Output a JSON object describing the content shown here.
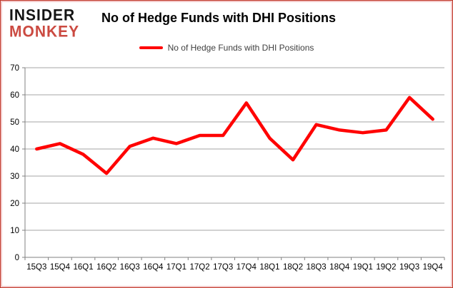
{
  "header": {
    "logo_line1": "INSIDER",
    "logo_line2": "MONKEY",
    "title": "No of Hedge Funds with DHI Positions"
  },
  "legend": {
    "label": "No of Hedge Funds with DHI Positions",
    "swatch_color": "#ff0000"
  },
  "chart_data": {
    "type": "line",
    "title": "No of Hedge Funds with DHI Positions",
    "categories": [
      "15Q3",
      "15Q4",
      "16Q1",
      "16Q2",
      "16Q3",
      "16Q4",
      "17Q1",
      "17Q2",
      "17Q3",
      "17Q4",
      "18Q1",
      "18Q2",
      "18Q3",
      "18Q4",
      "19Q1",
      "19Q2",
      "19Q3",
      "19Q4"
    ],
    "series": [
      {
        "name": "No of Hedge Funds with DHI Positions",
        "values": [
          40,
          42,
          38,
          31,
          41,
          44,
          42,
          45,
          45,
          57,
          44,
          36,
          49,
          47,
          46,
          47,
          59,
          51
        ]
      }
    ],
    "ylim": [
      0,
      70
    ],
    "ytick_interval": 10,
    "grid": true,
    "legend_position": "top",
    "line_color": "#ff0000",
    "grid_color": "#a6a6a6",
    "axis_color": "#808080",
    "tick_label_color": "#000000"
  }
}
